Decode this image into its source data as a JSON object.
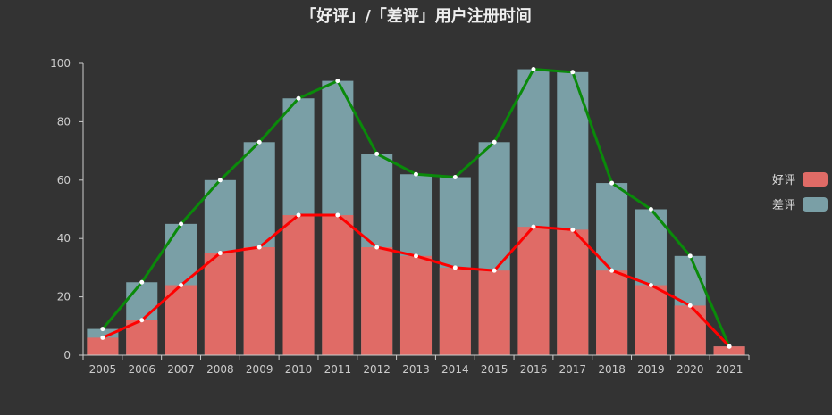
{
  "chart_data": {
    "type": "bar",
    "title": "「好评」/「差评」用户注册时间",
    "categories": [
      "2005",
      "2006",
      "2007",
      "2008",
      "2009",
      "2010",
      "2011",
      "2012",
      "2013",
      "2014",
      "2015",
      "2016",
      "2017",
      "2018",
      "2019",
      "2020",
      "2021"
    ],
    "series": [
      {
        "name": "好评",
        "values": [
          6,
          12,
          24,
          35,
          37,
          48,
          48,
          37,
          34,
          30,
          29,
          44,
          43,
          29,
          24,
          17,
          3
        ]
      },
      {
        "name": "差评",
        "values": [
          9,
          25,
          45,
          60,
          73,
          88,
          94,
          69,
          62,
          61,
          73,
          98,
          97,
          59,
          50,
          34,
          3
        ]
      }
    ],
    "line_series": [
      {
        "name": "好评",
        "values": [
          6,
          12,
          24,
          35,
          37,
          48,
          48,
          37,
          34,
          30,
          29,
          44,
          43,
          29,
          24,
          17,
          3
        ]
      },
      {
        "name": "差评",
        "values": [
          9,
          25,
          45,
          60,
          73,
          88,
          94,
          69,
          62,
          61,
          73,
          98,
          97,
          59,
          50,
          34,
          3
        ]
      }
    ],
    "ylim": [
      0,
      100
    ],
    "yticks": [
      0,
      20,
      40,
      60,
      80,
      100
    ],
    "legend_position": "right",
    "grid": false,
    "colors": {
      "good_bar": "#e06b66",
      "bad_bar": "#7a9fa6",
      "good_line": "#ff0000",
      "bad_line": "#0a8a0a",
      "background": "#333333",
      "axis": "#cccccc"
    }
  },
  "legend": {
    "items": [
      {
        "label": "好评",
        "color": "#e06b66"
      },
      {
        "label": "差评",
        "color": "#7a9fa6"
      }
    ]
  }
}
